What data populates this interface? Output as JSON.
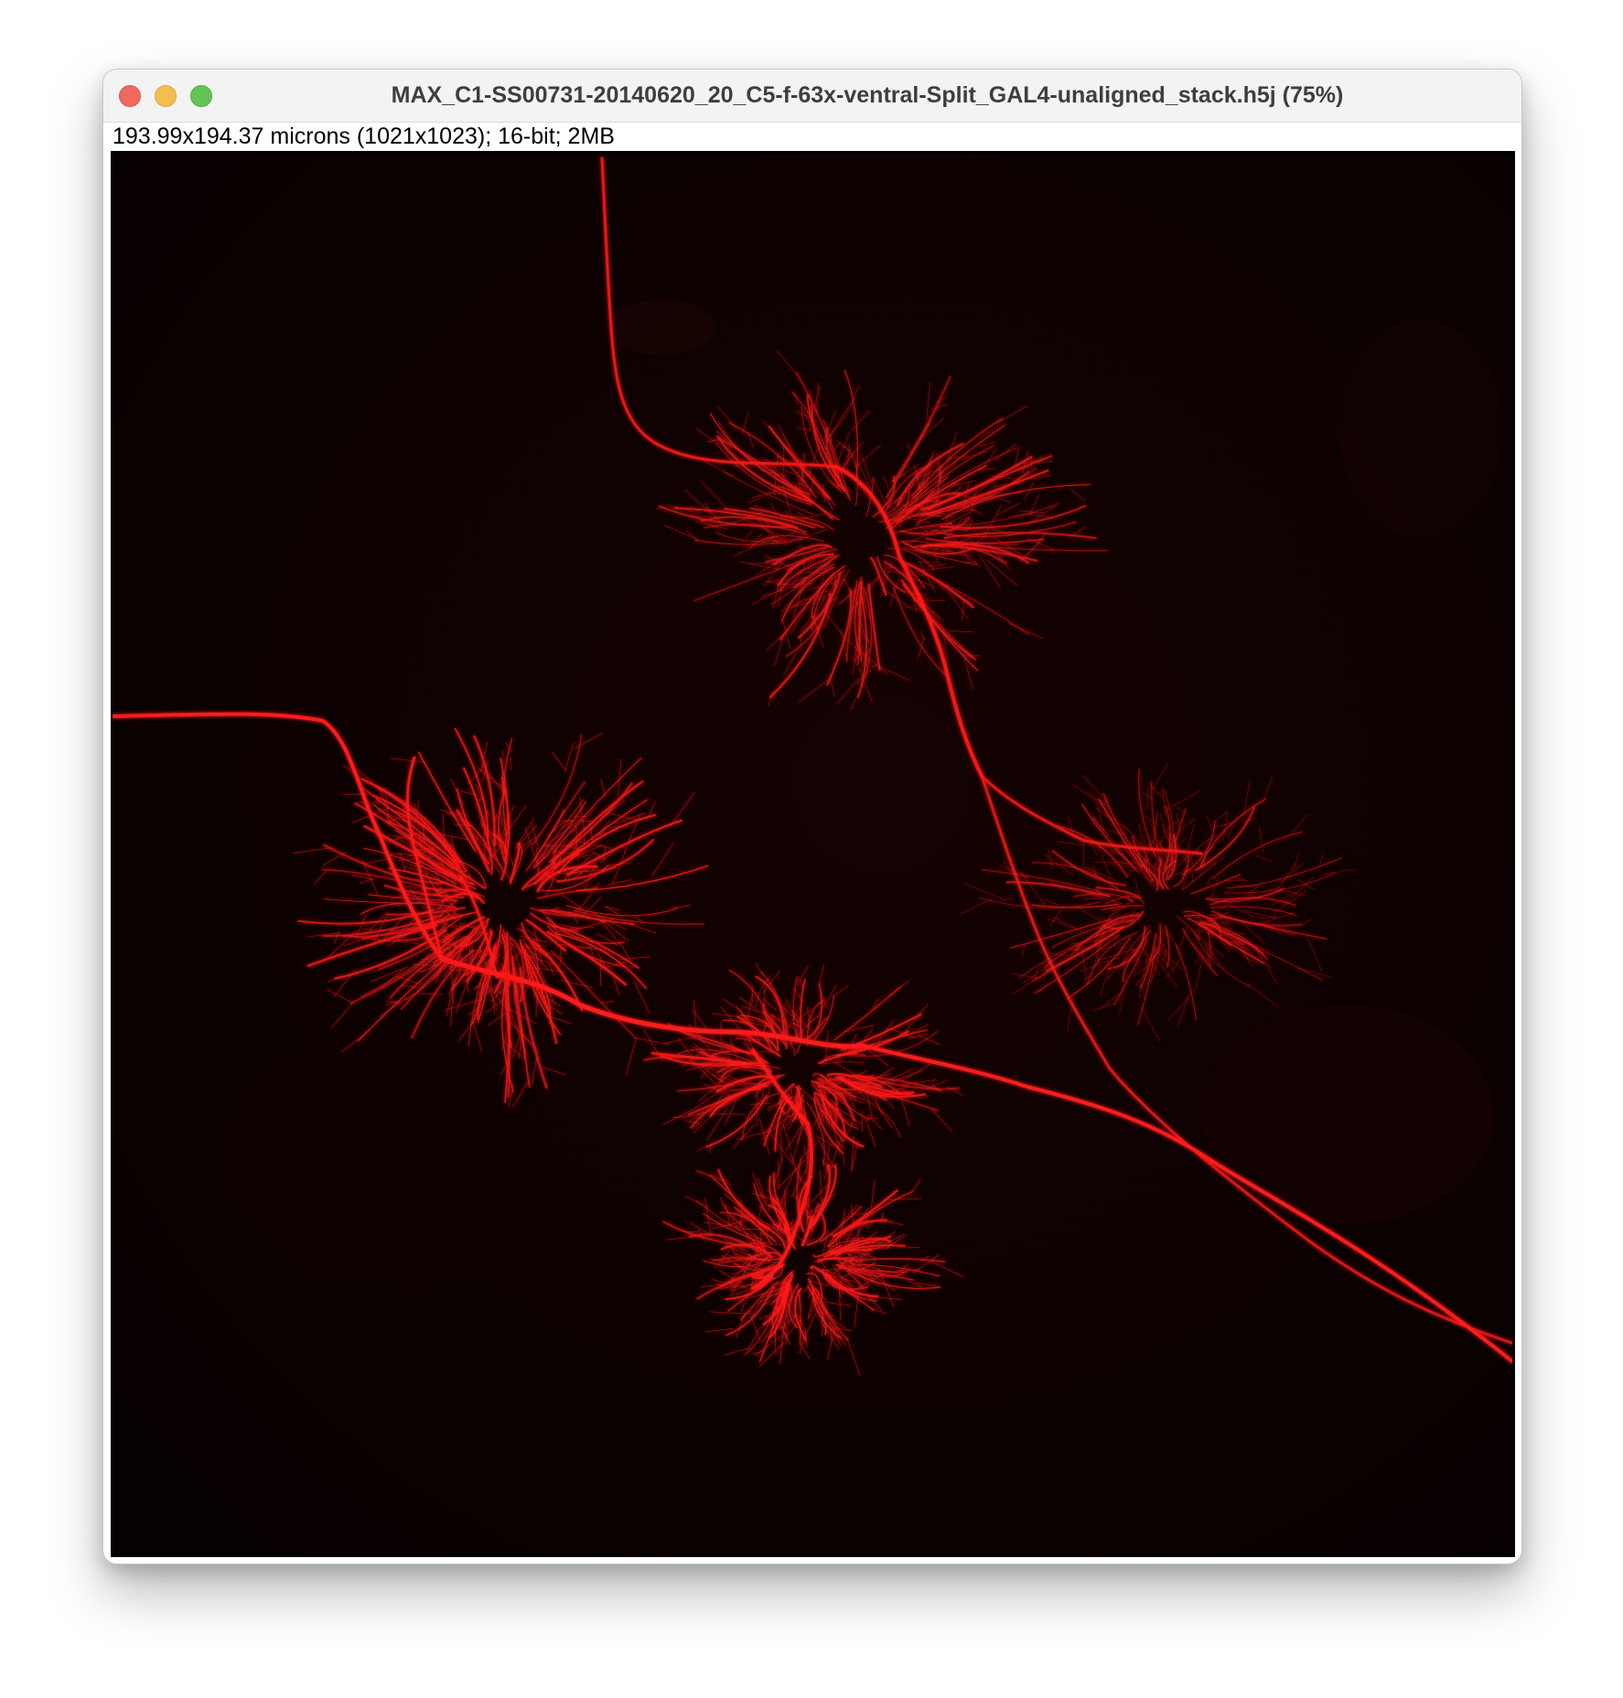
{
  "window": {
    "title": "MAX_C1-SS00731-20140620_20_C5-f-63x-ventral-Split_GAL4-unaligned_stack.h5j (75%)",
    "info": "193.99x194.37 microns (1021x1023); 16-bit; 2MB"
  },
  "image": {
    "channel_color": "#ff1a1a",
    "background_color": "#060000"
  },
  "colors": {
    "close": "#ee6a5f",
    "minimize": "#f5bd4f",
    "zoom": "#61c454"
  }
}
